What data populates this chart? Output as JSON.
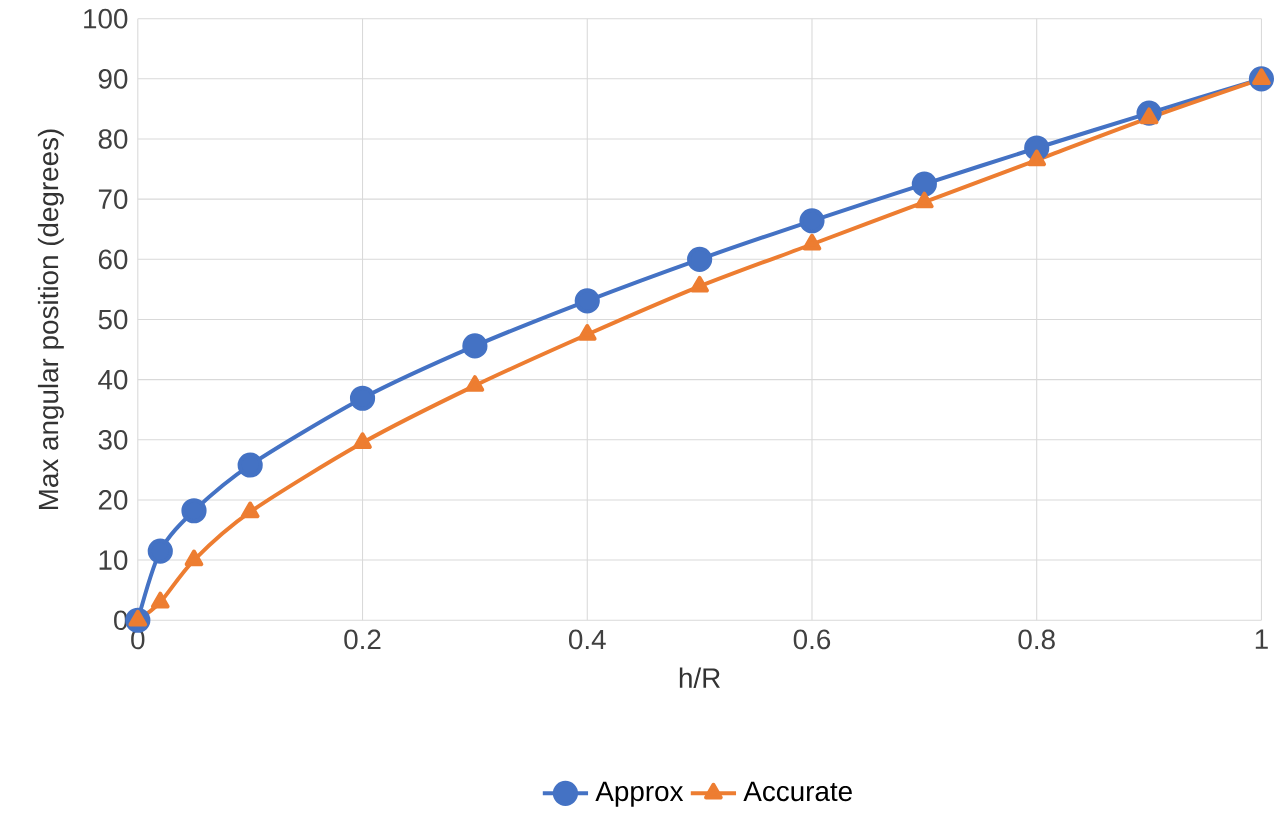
{
  "chart_data": {
    "type": "line",
    "xlabel": "h/R",
    "ylabel": "Max angular position (degrees)",
    "x": [
      0,
      0.02,
      0.05,
      0.1,
      0.2,
      0.3,
      0.4,
      0.5,
      0.6,
      0.7,
      0.8,
      0.9,
      1
    ],
    "series": [
      {
        "name": "Approx",
        "color": "#4472c4",
        "marker": "circle",
        "values": [
          0,
          11.5,
          18.2,
          25.8,
          36.9,
          45.6,
          53.1,
          60,
          66.4,
          72.5,
          78.5,
          84.3,
          90
        ]
      },
      {
        "name": "Accurate",
        "color": "#ed7d31",
        "marker": "triangle",
        "values": [
          0,
          3,
          10,
          18,
          29.5,
          39,
          47.5,
          55.5,
          62.5,
          69.5,
          76.5,
          83.5,
          90
        ]
      }
    ],
    "xlim": [
      0,
      1
    ],
    "ylim": [
      0,
      100
    ],
    "xticks": [
      0,
      0.2,
      0.4,
      0.6,
      0.8,
      1
    ],
    "yticks": [
      0,
      10,
      20,
      30,
      40,
      50,
      60,
      70,
      80,
      90,
      100
    ],
    "grid": true,
    "legend": "bottom",
    "line_style": "solid"
  }
}
